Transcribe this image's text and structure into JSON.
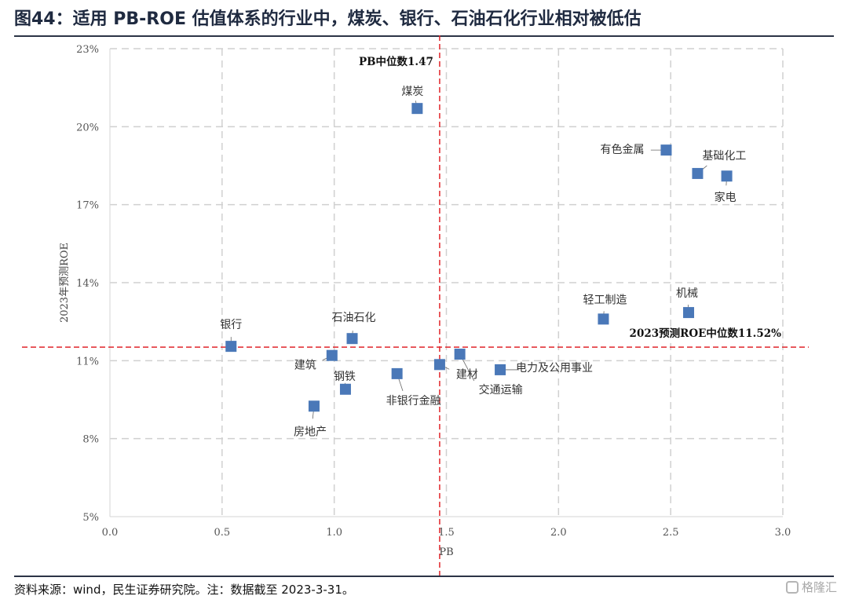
{
  "header": {
    "title": "图44：适用 PB-ROE 估值体系的行业中，煤炭、银行、石油石化行业相对被低估"
  },
  "footer": {
    "source": "资料来源：wind，民生证券研究院。注：数据截至 2023-3-31。",
    "watermark": "格隆汇",
    "watermark_icon": "logo-icon"
  },
  "chart_data": {
    "type": "scatter",
    "xlabel": "PB",
    "ylabel": "2023年预测ROE",
    "xlim": [
      0,
      3
    ],
    "ylim": [
      5,
      23
    ],
    "x_ticks": [
      "0.0",
      "0.5",
      "1.0",
      "1.5",
      "2.0",
      "2.5",
      "3.0"
    ],
    "y_ticks": [
      "5%",
      "8%",
      "11%",
      "14%",
      "17%",
      "20%",
      "23%"
    ],
    "grid": true,
    "points": [
      {
        "name": "银行",
        "x": 0.54,
        "y": 11.55
      },
      {
        "name": "煤炭",
        "x": 1.37,
        "y": 20.7
      },
      {
        "name": "有色金属",
        "x": 2.48,
        "y": 19.1
      },
      {
        "name": "基础化工",
        "x": 2.62,
        "y": 18.2
      },
      {
        "name": "家电",
        "x": 2.75,
        "y": 18.1
      },
      {
        "name": "机械",
        "x": 2.58,
        "y": 12.85
      },
      {
        "name": "轻工制造",
        "x": 2.2,
        "y": 12.6
      },
      {
        "name": "石油石化",
        "x": 1.08,
        "y": 11.85
      },
      {
        "name": "建筑",
        "x": 0.99,
        "y": 11.2
      },
      {
        "name": "建材",
        "x": 1.47,
        "y": 10.85
      },
      {
        "name": "交通运输",
        "x": 1.56,
        "y": 11.25
      },
      {
        "name": "电力及公用事业",
        "x": 1.74,
        "y": 10.65
      },
      {
        "name": "非银行金融",
        "x": 1.28,
        "y": 10.5
      },
      {
        "name": "钢铁",
        "x": 1.05,
        "y": 9.9
      },
      {
        "name": "房地产",
        "x": 0.91,
        "y": 9.25
      }
    ],
    "reference_lines": {
      "pb_median": {
        "value": 1.47,
        "label": "PB中位数1.47"
      },
      "roe_median": {
        "value": 11.52,
        "label": "2023预测ROE中位数11.52%"
      }
    },
    "colors": {
      "marker": "#4a78b8",
      "median_line": "#e0262b",
      "grid": "#d0d0d0"
    }
  }
}
